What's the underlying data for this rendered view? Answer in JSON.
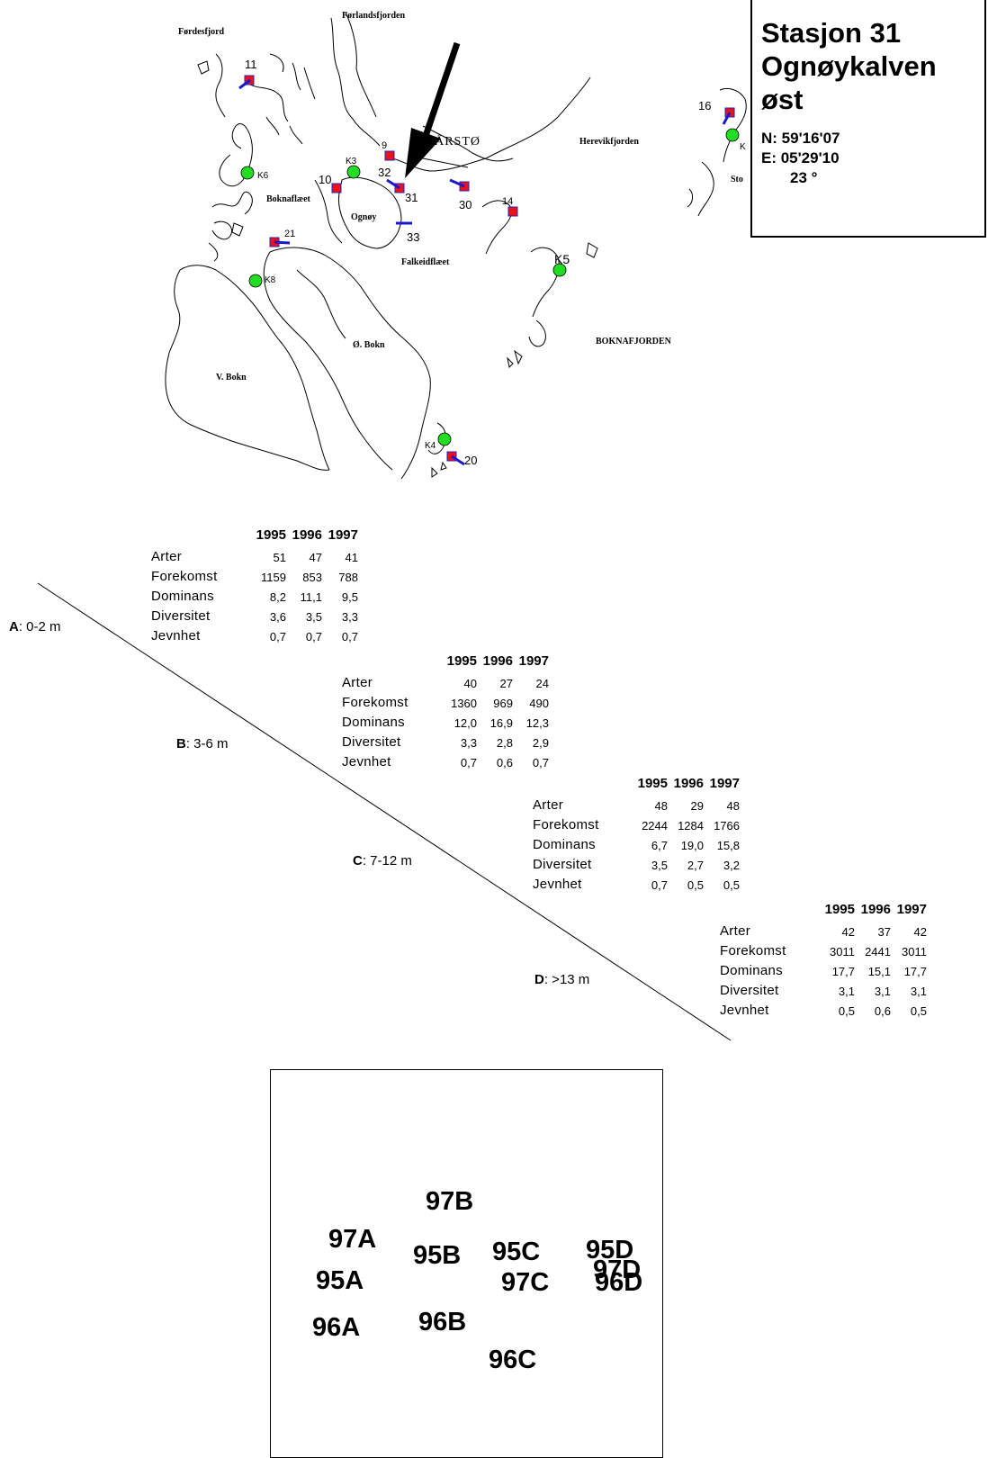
{
  "station": {
    "title_line1": "Stasjon 31",
    "title_line2": "Ognøykalven",
    "title_line3": "øst",
    "north": "N: 59'16'07",
    "east": "E: 05'29'10",
    "angle": "23 °"
  },
  "map": {
    "places": {
      "fordesfjord": "Førdesfjord",
      "forlandsfjorden": "Førlandsfjorden",
      "karsto": "KÅRSTØ",
      "herevikfjorden": "Herevikfjorden",
      "boknaflaet": "Boknaflæet",
      "ognoy": "Ognøy",
      "falkeidflaet": "Falkeidflæet",
      "boknafjorden": "BOKNAFJORDEN",
      "o_bokn": "Ø. Bokn",
      "v_bokn": "V. Bokn",
      "sto": "Sto"
    },
    "stations": {
      "s11": "11",
      "s9": "9",
      "s10": "10",
      "s32": "32",
      "s31": "31",
      "s30": "30",
      "s14": "14",
      "s21": "21",
      "s33": "33",
      "s16": "16",
      "s20": "20"
    },
    "kpoints": {
      "k6": "K6",
      "k3": "K3",
      "k8": "K8",
      "k5": "K5",
      "k4": "K4",
      "k": "K"
    }
  },
  "years": [
    "1995",
    "1996",
    "1997"
  ],
  "metrics": [
    "Arter",
    "Forekomst",
    "Dominans",
    "Diversitet",
    "Jevnhet"
  ],
  "zones": [
    {
      "letter": "A",
      "range": ": 0-2 m",
      "rows": [
        [
          "51",
          "47",
          "41"
        ],
        [
          "1159",
          "853",
          "788"
        ],
        [
          "8,2",
          "11,1",
          "9,5"
        ],
        [
          "3,6",
          "3,5",
          "3,3"
        ],
        [
          "0,7",
          "0,7",
          "0,7"
        ]
      ]
    },
    {
      "letter": "B",
      "range": ": 3-6 m",
      "rows": [
        [
          "40",
          "27",
          "24"
        ],
        [
          "1360",
          "969",
          "490"
        ],
        [
          "12,0",
          "16,9",
          "12,3"
        ],
        [
          "3,3",
          "2,8",
          "2,9"
        ],
        [
          "0,7",
          "0,6",
          "0,7"
        ]
      ]
    },
    {
      "letter": "C",
      "range": ": 7-12 m",
      "rows": [
        [
          "48",
          "29",
          "48"
        ],
        [
          "2244",
          "1284",
          "1766"
        ],
        [
          "6,7",
          "19,0",
          "15,8"
        ],
        [
          "3,5",
          "2,7",
          "3,2"
        ],
        [
          "0,7",
          "0,5",
          "0,5"
        ]
      ]
    },
    {
      "letter": "D",
      "range": ": >13 m",
      "rows": [
        [
          "42",
          "37",
          "42"
        ],
        [
          "3011",
          "2441",
          "3011"
        ],
        [
          "17,7",
          "15,1",
          "17,7"
        ],
        [
          "3,1",
          "3,1",
          "3,1"
        ],
        [
          "0,5",
          "0,6",
          "0,5"
        ]
      ]
    }
  ],
  "plot_labels": {
    "l97B": "97B",
    "l97A": "97A",
    "l95B": "95B",
    "l95C": "95C",
    "l95D": "95D",
    "l95A": "95A",
    "l97C": "97C",
    "l97D": "97D",
    "l96D": "96D",
    "l96A": "96A",
    "l96B": "96B",
    "l96C": "96C"
  }
}
